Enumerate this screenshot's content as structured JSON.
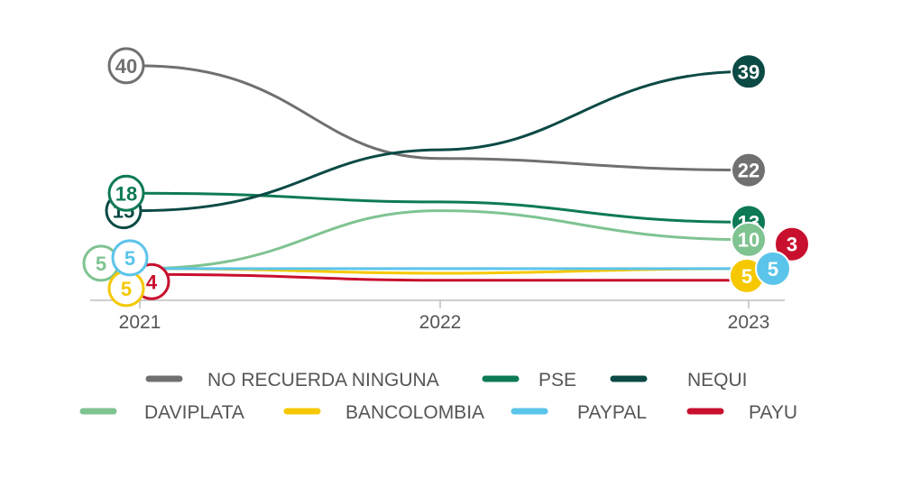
{
  "chart_data": {
    "type": "line",
    "title": "",
    "xlabel": "",
    "ylabel": "",
    "categories": [
      "2021",
      "2022",
      "2023"
    ],
    "ylim": [
      0,
      42
    ],
    "grid": false,
    "legend_position": "bottom",
    "series": [
      {
        "name": "NO RECUERDA NINGUNA",
        "color": "#707070",
        "start": 40,
        "end": 22,
        "mid": 24
      },
      {
        "name": "PSE",
        "color": "#0d7a55",
        "start": 18,
        "end": 13,
        "mid": 16.5
      },
      {
        "name": "NEQUI",
        "color": "#0c4a45",
        "start": 15,
        "end": 39,
        "mid": 25.5
      },
      {
        "name": "DAVIPLATA",
        "color": "#7fc391",
        "start": 5,
        "end": 10,
        "mid": 15
      },
      {
        "name": "BANCOLOMBIA",
        "color": "#f5c800",
        "start": 5,
        "end": 5,
        "mid": 4.2
      },
      {
        "name": "PAYPAL",
        "color": "#5bc4ea",
        "start": 5,
        "end": 5,
        "mid": 5
      },
      {
        "name": "PAYU",
        "color": "#c8102e",
        "start": 4,
        "end": 3,
        "mid": 3
      }
    ]
  }
}
